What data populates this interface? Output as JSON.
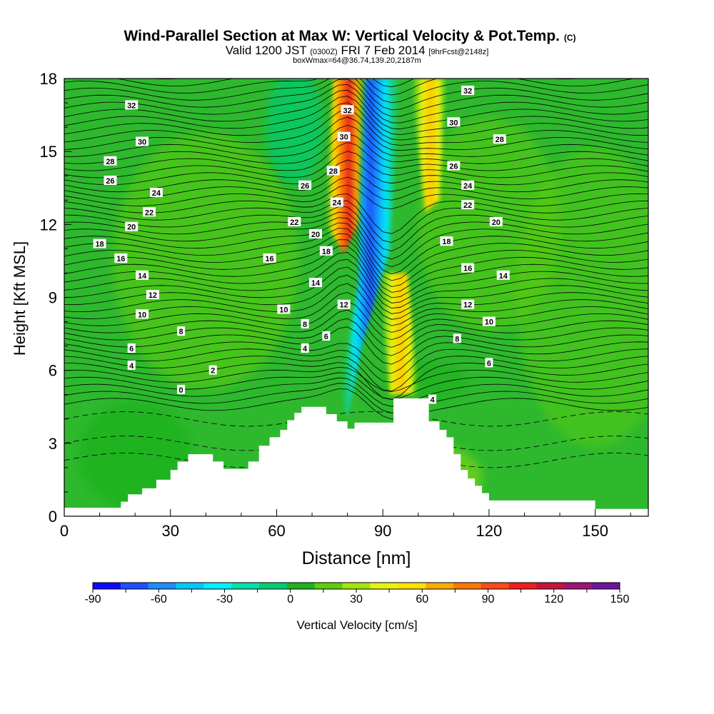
{
  "chart_data": {
    "type": "heatmap",
    "title": "Wind-Parallel Section at Max W: Vertical Velocity & Pot.Temp.",
    "title_mark": "(C)",
    "subtitle_valid": "Valid 1200 JST",
    "subtitle_utc": "(0300Z)",
    "subtitle_date": "FRI 7 Feb 2014",
    "subtitle_fcst": "[9hrFcst@2148z]",
    "subtitle_box": "boxWmax=64@36.74,139.20,2187m",
    "xlabel": "Distance [nm]",
    "ylabel": "Height [Kft MSL]",
    "xlim": [
      0,
      165
    ],
    "ylim": [
      0,
      18
    ],
    "x_ticks": [
      "0",
      "30",
      "60",
      "90",
      "120",
      "150"
    ],
    "y_ticks": [
      "0",
      "3",
      "6",
      "9",
      "12",
      "15",
      "18"
    ],
    "colorbar": {
      "label": "Vertical Velocity [cm/s]",
      "min": -90,
      "max": 150,
      "step": 15,
      "tick_labels": [
        "-90",
        "-60",
        "-30",
        "0",
        "30",
        "60",
        "90",
        "120",
        "150"
      ],
      "colors": [
        "#0a0aff",
        "#1e50ff",
        "#1e8cff",
        "#00c8ff",
        "#00f0ff",
        "#00e0a8",
        "#00cc70",
        "#1fb21f",
        "#5ccf0a",
        "#a0e60a",
        "#e6f50a",
        "#ffe100",
        "#ffaa00",
        "#ff7700",
        "#ff4a14",
        "#f01e1e",
        "#c8143c",
        "#a01478",
        "#6e14a0"
      ]
    },
    "terrain": [
      [
        0,
        0.35
      ],
      [
        16,
        0.35
      ],
      [
        16,
        0.6
      ],
      [
        18,
        0.6
      ],
      [
        18,
        0.9
      ],
      [
        22,
        0.9
      ],
      [
        22,
        1.15
      ],
      [
        26,
        1.15
      ],
      [
        26,
        1.5
      ],
      [
        30,
        1.5
      ],
      [
        30,
        1.9
      ],
      [
        32,
        1.9
      ],
      [
        32,
        2.25
      ],
      [
        35,
        2.25
      ],
      [
        35,
        2.55
      ],
      [
        42,
        2.55
      ],
      [
        42,
        2.25
      ],
      [
        45,
        2.25
      ],
      [
        45,
        1.95
      ],
      [
        52,
        1.95
      ],
      [
        52,
        2.25
      ],
      [
        55,
        2.25
      ],
      [
        55,
        2.9
      ],
      [
        58,
        2.9
      ],
      [
        58,
        3.25
      ],
      [
        61,
        3.25
      ],
      [
        61,
        3.55
      ],
      [
        63,
        3.55
      ],
      [
        63,
        3.95
      ],
      [
        65,
        3.95
      ],
      [
        65,
        4.25
      ],
      [
        67,
        4.25
      ],
      [
        67,
        4.5
      ],
      [
        74,
        4.5
      ],
      [
        74,
        4.2
      ],
      [
        77,
        4.2
      ],
      [
        77,
        3.9
      ],
      [
        80,
        3.9
      ],
      [
        80,
        3.6
      ],
      [
        82,
        3.6
      ],
      [
        82,
        3.85
      ],
      [
        85,
        3.85
      ],
      [
        85,
        3.85
      ],
      [
        93,
        3.85
      ],
      [
        93,
        4.85
      ],
      [
        103,
        4.85
      ],
      [
        103,
        3.9
      ],
      [
        106,
        3.9
      ],
      [
        106,
        3.55
      ],
      [
        108,
        3.55
      ],
      [
        108,
        3.25
      ],
      [
        110,
        3.25
      ],
      [
        110,
        2.55
      ],
      [
        112,
        2.55
      ],
      [
        112,
        1.9
      ],
      [
        114,
        1.9
      ],
      [
        114,
        1.55
      ],
      [
        116,
        1.55
      ],
      [
        116,
        1.25
      ],
      [
        118,
        1.25
      ],
      [
        118,
        0.95
      ],
      [
        120,
        0.95
      ],
      [
        120,
        0.65
      ],
      [
        150,
        0.65
      ],
      [
        150,
        0.3
      ],
      [
        165,
        0.3
      ]
    ],
    "contour_labels": [
      {
        "x": 19,
        "y": 16.9,
        "text": "32"
      },
      {
        "x": 22,
        "y": 15.4,
        "text": "30"
      },
      {
        "x": 13,
        "y": 14.6,
        "text": "28"
      },
      {
        "x": 13,
        "y": 13.8,
        "text": "26"
      },
      {
        "x": 26,
        "y": 13.3,
        "text": "24"
      },
      {
        "x": 24,
        "y": 12.5,
        "text": "22"
      },
      {
        "x": 19,
        "y": 11.9,
        "text": "20"
      },
      {
        "x": 10,
        "y": 11.2,
        "text": "18"
      },
      {
        "x": 16,
        "y": 10.6,
        "text": "16"
      },
      {
        "x": 22,
        "y": 9.9,
        "text": "14"
      },
      {
        "x": 25,
        "y": 9.1,
        "text": "12"
      },
      {
        "x": 22,
        "y": 8.3,
        "text": "10"
      },
      {
        "x": 33,
        "y": 7.6,
        "text": "8"
      },
      {
        "x": 19,
        "y": 6.9,
        "text": "6"
      },
      {
        "x": 19,
        "y": 6.2,
        "text": "4"
      },
      {
        "x": 42,
        "y": 6.0,
        "text": "2"
      },
      {
        "x": 33,
        "y": 5.2,
        "text": "0"
      },
      {
        "x": 68,
        "y": 13.6,
        "text": "26"
      },
      {
        "x": 65,
        "y": 12.1,
        "text": "22"
      },
      {
        "x": 71,
        "y": 11.6,
        "text": "20"
      },
      {
        "x": 74,
        "y": 10.9,
        "text": "18"
      },
      {
        "x": 58,
        "y": 10.6,
        "text": "16"
      },
      {
        "x": 71,
        "y": 9.6,
        "text": "14"
      },
      {
        "x": 62,
        "y": 8.5,
        "text": "10"
      },
      {
        "x": 68,
        "y": 7.9,
        "text": "8"
      },
      {
        "x": 68,
        "y": 6.9,
        "text": "4"
      },
      {
        "x": 74,
        "y": 7.4,
        "text": "6"
      },
      {
        "x": 79,
        "y": 8.7,
        "text": "12"
      },
      {
        "x": 77,
        "y": 12.9,
        "text": "24"
      },
      {
        "x": 76,
        "y": 14.2,
        "text": "28"
      },
      {
        "x": 79,
        "y": 15.6,
        "text": "30"
      },
      {
        "x": 80,
        "y": 16.7,
        "text": "32"
      },
      {
        "x": 110,
        "y": 16.2,
        "text": "30"
      },
      {
        "x": 114,
        "y": 17.5,
        "text": "32"
      },
      {
        "x": 123,
        "y": 15.5,
        "text": "28"
      },
      {
        "x": 110,
        "y": 14.4,
        "text": "26"
      },
      {
        "x": 114,
        "y": 13.6,
        "text": "24"
      },
      {
        "x": 114,
        "y": 12.8,
        "text": "22"
      },
      {
        "x": 122,
        "y": 12.1,
        "text": "20"
      },
      {
        "x": 108,
        "y": 11.3,
        "text": "18"
      },
      {
        "x": 114,
        "y": 10.2,
        "text": "16"
      },
      {
        "x": 124,
        "y": 9.9,
        "text": "14"
      },
      {
        "x": 114,
        "y": 8.7,
        "text": "12"
      },
      {
        "x": 120,
        "y": 8.0,
        "text": "10"
      },
      {
        "x": 111,
        "y": 7.3,
        "text": "8"
      },
      {
        "x": 120,
        "y": 6.3,
        "text": "6"
      },
      {
        "x": 104,
        "y": 4.8,
        "text": "4"
      }
    ]
  }
}
